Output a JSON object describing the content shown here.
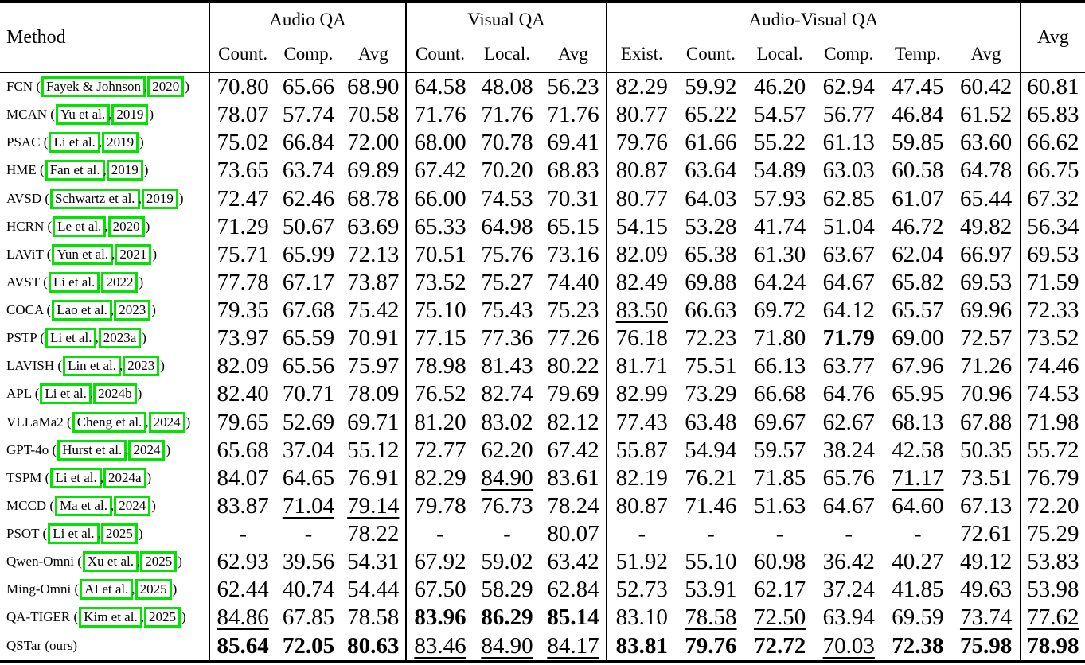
{
  "header": {
    "method_label": "Method",
    "overall_avg_label": "Avg",
    "groups": [
      {
        "label": "Audio QA",
        "columns": [
          "Count.",
          "Comp.",
          "Avg"
        ]
      },
      {
        "label": "Visual QA",
        "columns": [
          "Count.",
          "Local.",
          "Avg"
        ]
      },
      {
        "label": "Audio-Visual QA",
        "columns": [
          "Exist.",
          "Count.",
          "Local.",
          "Comp.",
          "Temp.",
          "Avg"
        ]
      }
    ]
  },
  "colors": {
    "citation_box_green": "#00e400",
    "text": "#000000",
    "background": "#ffffff"
  },
  "rows": [
    {
      "method": "FCN",
      "cite_author": "Fayek & Johnson",
      "cite_year": "2020",
      "values": [
        "70.80",
        "65.66",
        "68.90",
        "64.58",
        "48.08",
        "56.23",
        "82.29",
        "59.92",
        "46.20",
        "62.94",
        "47.45",
        "60.42",
        "60.81"
      ],
      "styles": [
        "",
        "",
        "",
        "",
        "",
        "",
        "",
        "",
        "",
        "",
        "",
        "",
        ""
      ]
    },
    {
      "method": "MCAN",
      "cite_author": "Yu et al.",
      "cite_year": "2019",
      "values": [
        "78.07",
        "57.74",
        "70.58",
        "71.76",
        "71.76",
        "71.76",
        "80.77",
        "65.22",
        "54.57",
        "56.77",
        "46.84",
        "61.52",
        "65.83"
      ],
      "styles": [
        "",
        "",
        "",
        "",
        "",
        "",
        "",
        "",
        "",
        "",
        "",
        "",
        ""
      ]
    },
    {
      "method": "PSAC",
      "cite_author": "Li et al.",
      "cite_year": "2019",
      "values": [
        "75.02",
        "66.84",
        "72.00",
        "68.00",
        "70.78",
        "69.41",
        "79.76",
        "61.66",
        "55.22",
        "61.13",
        "59.85",
        "63.60",
        "66.62"
      ],
      "styles": [
        "",
        "",
        "",
        "",
        "",
        "",
        "",
        "",
        "",
        "",
        "",
        "",
        ""
      ]
    },
    {
      "method": "HME",
      "cite_author": "Fan et al.",
      "cite_year": "2019",
      "values": [
        "73.65",
        "63.74",
        "69.89",
        "67.42",
        "70.20",
        "68.83",
        "80.87",
        "63.64",
        "54.89",
        "63.03",
        "60.58",
        "64.78",
        "66.75"
      ],
      "styles": [
        "",
        "",
        "",
        "",
        "",
        "",
        "",
        "",
        "",
        "",
        "",
        "",
        ""
      ]
    },
    {
      "method": "AVSD",
      "cite_author": "Schwartz et al.",
      "cite_year": "2019",
      "values": [
        "72.47",
        "62.46",
        "68.78",
        "66.00",
        "74.53",
        "70.31",
        "80.77",
        "64.03",
        "57.93",
        "62.85",
        "61.07",
        "65.44",
        "67.32"
      ],
      "styles": [
        "",
        "",
        "",
        "",
        "",
        "",
        "",
        "",
        "",
        "",
        "",
        "",
        ""
      ]
    },
    {
      "method": "HCRN",
      "cite_author": "Le et al.",
      "cite_year": "2020",
      "values": [
        "71.29",
        "50.67",
        "63.69",
        "65.33",
        "64.98",
        "65.15",
        "54.15",
        "53.28",
        "41.74",
        "51.04",
        "46.72",
        "49.82",
        "56.34"
      ],
      "styles": [
        "",
        "",
        "",
        "",
        "",
        "",
        "",
        "",
        "",
        "",
        "",
        "",
        ""
      ]
    },
    {
      "method": "LAViT",
      "cite_author": "Yun et al.",
      "cite_year": "2021",
      "values": [
        "75.71",
        "65.99",
        "72.13",
        "70.51",
        "75.76",
        "73.16",
        "82.09",
        "65.38",
        "61.30",
        "63.67",
        "62.04",
        "66.97",
        "69.53"
      ],
      "styles": [
        "",
        "",
        "",
        "",
        "",
        "",
        "",
        "",
        "",
        "",
        "",
        "",
        ""
      ]
    },
    {
      "method": "AVST",
      "cite_author": "Li et al.",
      "cite_year": "2022",
      "values": [
        "77.78",
        "67.17",
        "73.87",
        "73.52",
        "75.27",
        "74.40",
        "82.49",
        "69.88",
        "64.24",
        "64.67",
        "65.82",
        "69.53",
        "71.59"
      ],
      "styles": [
        "",
        "",
        "",
        "",
        "",
        "",
        "",
        "",
        "",
        "",
        "",
        "",
        ""
      ]
    },
    {
      "method": "COCA",
      "cite_author": "Lao et al.",
      "cite_year": "2023",
      "values": [
        "79.35",
        "67.68",
        "75.42",
        "75.10",
        "75.43",
        "75.23",
        "83.50",
        "66.63",
        "69.72",
        "64.12",
        "65.57",
        "69.96",
        "72.33"
      ],
      "styles": [
        "",
        "",
        "",
        "",
        "",
        "",
        "u",
        "",
        "",
        "",
        "",
        "",
        ""
      ]
    },
    {
      "method": "PSTP",
      "cite_author": "Li et al.",
      "cite_year": "2023a",
      "values": [
        "73.97",
        "65.59",
        "70.91",
        "77.15",
        "77.36",
        "77.26",
        "76.18",
        "72.23",
        "71.80",
        "71.79",
        "69.00",
        "72.57",
        "73.52"
      ],
      "styles": [
        "",
        "",
        "",
        "",
        "",
        "",
        "",
        "",
        "",
        "b",
        "",
        "",
        ""
      ]
    },
    {
      "method": "LAVISH",
      "cite_author": "Lin et al.",
      "cite_year": "2023",
      "values": [
        "82.09",
        "65.56",
        "75.97",
        "78.98",
        "81.43",
        "80.22",
        "81.71",
        "75.51",
        "66.13",
        "63.77",
        "67.96",
        "71.26",
        "74.46"
      ],
      "styles": [
        "",
        "",
        "",
        "",
        "",
        "",
        "",
        "",
        "",
        "",
        "",
        "",
        ""
      ]
    },
    {
      "method": "APL",
      "cite_author": "Li et al.",
      "cite_year": "2024b",
      "values": [
        "82.40",
        "70.71",
        "78.09",
        "76.52",
        "82.74",
        "79.69",
        "82.99",
        "73.29",
        "66.68",
        "64.76",
        "65.95",
        "70.96",
        "74.53"
      ],
      "styles": [
        "",
        "",
        "",
        "",
        "",
        "",
        "",
        "",
        "",
        "",
        "",
        "",
        ""
      ]
    },
    {
      "method": "VLLaMa2",
      "cite_author": "Cheng et al.",
      "cite_year": "2024",
      "values": [
        "79.65",
        "52.69",
        "69.71",
        "81.20",
        "83.02",
        "82.12",
        "77.43",
        "63.48",
        "69.67",
        "62.67",
        "68.13",
        "67.88",
        "71.98"
      ],
      "styles": [
        "",
        "",
        "",
        "",
        "",
        "",
        "",
        "",
        "",
        "",
        "",
        "",
        ""
      ]
    },
    {
      "method": "GPT-4o",
      "cite_author": "Hurst et al.",
      "cite_year": "2024",
      "values": [
        "65.68",
        "37.04",
        "55.12",
        "72.77",
        "62.20",
        "67.42",
        "55.87",
        "54.94",
        "59.57",
        "38.24",
        "42.58",
        "50.35",
        "55.72"
      ],
      "styles": [
        "",
        "",
        "",
        "",
        "",
        "",
        "",
        "",
        "",
        "",
        "",
        "",
        ""
      ]
    },
    {
      "method": "TSPM",
      "cite_author": "Li et al.",
      "cite_year": "2024a",
      "values": [
        "84.07",
        "64.65",
        "76.91",
        "82.29",
        "84.90",
        "83.61",
        "82.19",
        "76.21",
        "71.85",
        "65.76",
        "71.17",
        "73.51",
        "76.79"
      ],
      "styles": [
        "",
        "",
        "",
        "",
        "u",
        "",
        "",
        "",
        "",
        "",
        "u",
        "",
        ""
      ]
    },
    {
      "method": "MCCD",
      "cite_author": "Ma et al.",
      "cite_year": "2024",
      "values": [
        "83.87",
        "71.04",
        "79.14",
        "79.78",
        "76.73",
        "78.24",
        "80.87",
        "71.46",
        "51.63",
        "64.67",
        "64.60",
        "67.13",
        "72.20"
      ],
      "styles": [
        "",
        "u",
        "u",
        "",
        "",
        "",
        "",
        "",
        "",
        "",
        "",
        "",
        ""
      ]
    },
    {
      "method": "PSOT",
      "cite_author": "Li et al.",
      "cite_year": "2025",
      "values": [
        "-",
        "-",
        "78.22",
        "-",
        "-",
        "80.07",
        "-",
        "-",
        "-",
        "-",
        "-",
        "72.61",
        "75.29"
      ],
      "styles": [
        "",
        "",
        "",
        "",
        "",
        "",
        "",
        "",
        "",
        "",
        "",
        "",
        ""
      ]
    },
    {
      "method": "Qwen-Omni",
      "cite_author": "Xu et al.",
      "cite_year": "2025",
      "values": [
        "62.93",
        "39.56",
        "54.31",
        "67.92",
        "59.02",
        "63.42",
        "51.92",
        "55.10",
        "60.98",
        "36.42",
        "40.27",
        "49.12",
        "53.83"
      ],
      "styles": [
        "",
        "",
        "",
        "",
        "",
        "",
        "",
        "",
        "",
        "",
        "",
        "",
        ""
      ]
    },
    {
      "method": "Ming-Omni",
      "cite_author": "AI et al.",
      "cite_year": "2025",
      "values": [
        "62.44",
        "40.74",
        "54.44",
        "67.50",
        "58.29",
        "62.84",
        "52.73",
        "53.91",
        "62.17",
        "37.24",
        "41.85",
        "49.63",
        "53.98"
      ],
      "styles": [
        "",
        "",
        "",
        "",
        "",
        "",
        "",
        "",
        "",
        "",
        "",
        "",
        ""
      ]
    },
    {
      "method": "QA-TIGER",
      "cite_author": "Kim et al.",
      "cite_year": "2025",
      "values": [
        "84.86",
        "67.85",
        "78.58",
        "83.96",
        "86.29",
        "85.14",
        "83.10",
        "78.58",
        "72.50",
        "63.94",
        "69.59",
        "73.74",
        "77.62"
      ],
      "styles": [
        "u",
        "",
        "",
        "b",
        "b",
        "b",
        "",
        "u",
        "u",
        "",
        "",
        "u",
        "u"
      ]
    },
    {
      "method": "QSTar",
      "suffix": "(ours)",
      "values": [
        "85.64",
        "72.05",
        "80.63",
        "83.46",
        "84.90",
        "84.17",
        "83.81",
        "79.76",
        "72.72",
        "70.03",
        "72.38",
        "75.98",
        "78.98"
      ],
      "styles": [
        "b",
        "b",
        "b",
        "u",
        "u",
        "u",
        "b",
        "b",
        "b",
        "u",
        "b",
        "b",
        "b"
      ]
    }
  ]
}
